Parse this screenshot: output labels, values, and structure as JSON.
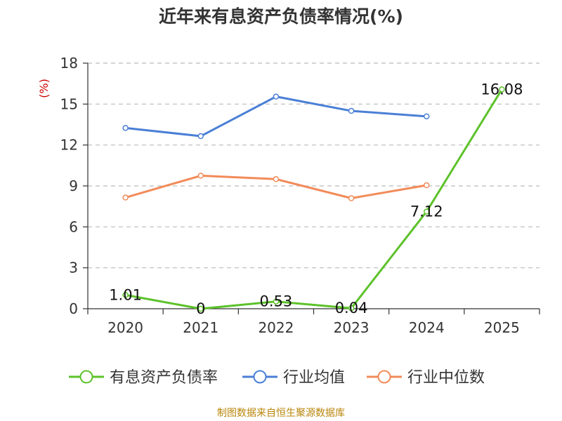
{
  "chart_data": {
    "type": "line",
    "title": "近年来有息资产负债率情况(%)",
    "ylabel": "(%)",
    "categories": [
      "2020",
      "2021",
      "2022",
      "2023",
      "2024",
      "2025"
    ],
    "ylim": [
      0,
      18
    ],
    "yticks": [
      "0",
      "3",
      "6",
      "9",
      "12",
      "15",
      "18"
    ],
    "grid": true,
    "legend_position": "bottom",
    "series": [
      {
        "name": "有息资产负债率",
        "color": "#5dc22b",
        "values": [
          1.01,
          0,
          0.53,
          0.04,
          7.12,
          16.08
        ],
        "labels": [
          "1.01",
          "0",
          "0.53",
          "0.04",
          "7.12",
          "16.08"
        ]
      },
      {
        "name": "行业均值",
        "color": "#4a7fd6",
        "values": [
          13.25,
          12.65,
          15.55,
          14.5,
          14.1,
          null
        ]
      },
      {
        "name": "行业中位数",
        "color": "#f28b59",
        "values": [
          8.15,
          9.75,
          9.5,
          8.1,
          9.05,
          null
        ]
      }
    ]
  },
  "source": "制图数据来自恒生聚源数据库"
}
